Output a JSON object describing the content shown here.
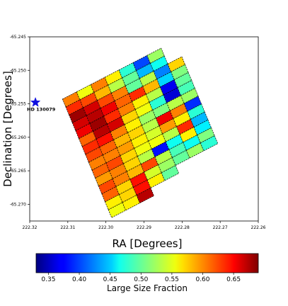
{
  "chart_data": {
    "type": "heatmap",
    "xlabel": "RA [Degrees]",
    "ylabel": "Declination [Degrees]",
    "xlim": [
      222.32,
      222.26
    ],
    "ylim": [
      -65.2725,
      -65.245
    ],
    "x_ticks": [
      "222.32",
      "222.31",
      "222.30",
      "222.29",
      "222.28",
      "222.27",
      "222.26"
    ],
    "y_ticks": [
      "-65.245",
      "-65.250",
      "-65.255",
      "-65.260",
      "-65.265",
      "-65.270"
    ],
    "grid": false,
    "colorbar": {
      "label": "Large Size Fraction",
      "range": [
        0.33,
        0.69
      ],
      "ticks": [
        "0.35",
        "0.40",
        "0.45",
        "0.50",
        "0.55",
        "0.60",
        "0.65"
      ]
    },
    "grid_frame": {
      "rows": 15,
      "cols": 8,
      "corner_top_left": [
        222.3114,
        -65.2543
      ],
      "corner_top_right": [
        222.2818,
        -65.2456
      ],
      "corner_bottom_left": [
        222.2985,
        -65.272
      ],
      "corner_bottom_right": [
        222.2689,
        -65.2633
      ]
    },
    "cell_values": [
      [
        0.6,
        0.55,
        0.6,
        0.56,
        0.48,
        0.4,
        0.52,
        null
      ],
      [
        0.63,
        0.62,
        0.58,
        0.53,
        0.5,
        0.44,
        0.47,
        null
      ],
      [
        0.68,
        0.66,
        0.62,
        0.6,
        0.5,
        0.53,
        0.42,
        0.57
      ],
      [
        0.66,
        0.67,
        0.65,
        0.61,
        0.63,
        0.58,
        0.45,
        0.51
      ],
      [
        0.65,
        0.68,
        0.63,
        0.6,
        0.56,
        0.53,
        0.37,
        0.5
      ],
      [
        0.61,
        0.67,
        0.66,
        0.57,
        0.55,
        0.48,
        0.36,
        0.49
      ],
      [
        0.63,
        0.64,
        0.6,
        0.56,
        0.52,
        0.51,
        0.53,
        0.52
      ],
      [
        0.62,
        0.61,
        0.58,
        0.57,
        0.53,
        0.65,
        0.6,
        0.39
      ],
      [
        0.6,
        0.6,
        0.59,
        0.56,
        0.54,
        0.59,
        0.56,
        0.48
      ],
      [
        0.61,
        0.62,
        0.57,
        0.55,
        0.55,
        0.53,
        0.63,
        0.44
      ],
      [
        0.59,
        0.6,
        0.57,
        0.53,
        0.38,
        0.47,
        0.56,
        0.46
      ],
      [
        0.62,
        0.6,
        0.58,
        0.62,
        0.53,
        0.49,
        0.47,
        0.51
      ],
      [
        0.61,
        0.57,
        0.64,
        0.54,
        0.52,
        0.5,
        0.52,
        0.48
      ],
      [
        0.56,
        0.57,
        0.64,
        0.56,
        0.5,
        null,
        null,
        null
      ],
      [
        0.55,
        0.56,
        0.67,
        null,
        null,
        null,
        null,
        null
      ]
    ],
    "marker": {
      "label": "HD 130079",
      "ra": 222.3185,
      "dec": -65.2548,
      "symbol": "star",
      "color": "#1010e0"
    }
  }
}
